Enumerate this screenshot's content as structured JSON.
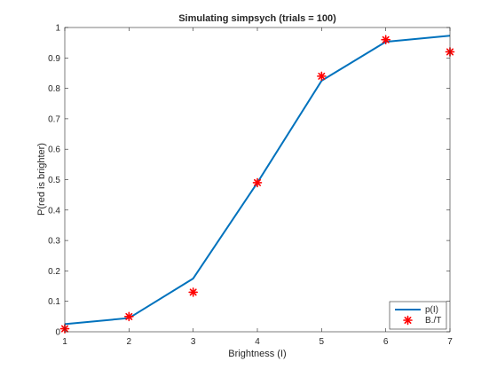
{
  "chart_data": {
    "type": "line",
    "title": "Simulating simpsych (trials = 100)",
    "xlabel": "Brightness (I)",
    "ylabel": "P(red is brighter)",
    "xlim": [
      1,
      7
    ],
    "ylim": [
      0,
      1
    ],
    "x_ticks": [
      1,
      2,
      3,
      4,
      5,
      6,
      7
    ],
    "y_ticks": [
      0,
      0.1,
      0.2,
      0.3,
      0.4,
      0.5,
      0.6,
      0.7,
      0.8,
      0.9,
      1
    ],
    "grid": false,
    "legend_position": "bottom-right",
    "series": [
      {
        "name": "p(I)",
        "style": "line",
        "color": "#0072BD",
        "x": [
          1,
          2,
          3,
          4,
          5,
          6,
          7
        ],
        "y": [
          0.025,
          0.045,
          0.175,
          0.49,
          0.825,
          0.953,
          0.973
        ]
      },
      {
        "name": "B./T",
        "style": "marker-asterisk",
        "color": "#FF0000",
        "x": [
          1,
          2,
          3,
          4,
          5,
          6,
          7
        ],
        "y": [
          0.01,
          0.05,
          0.13,
          0.49,
          0.84,
          0.96,
          0.92
        ]
      }
    ]
  }
}
